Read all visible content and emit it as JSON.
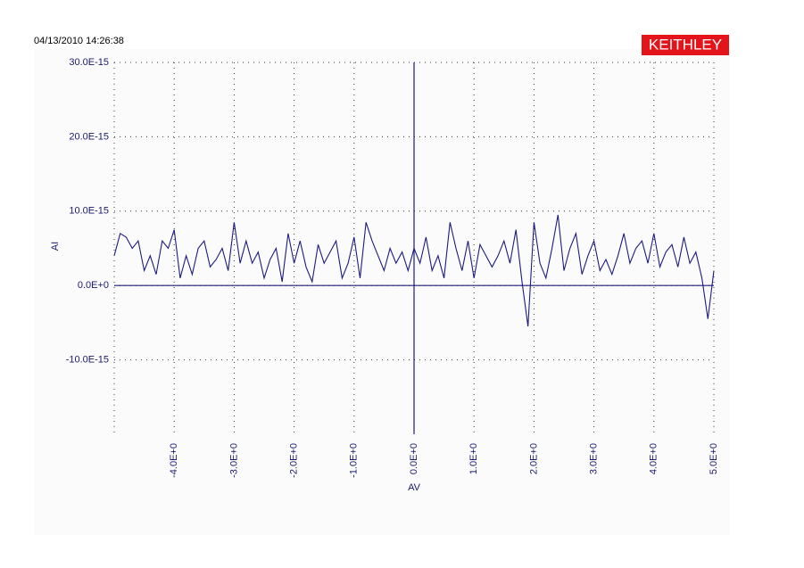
{
  "header": {
    "timestamp": "04/13/2010 14:26:38",
    "brand": "KEITHLEY"
  },
  "chart_data": {
    "type": "line",
    "xlabel": "AV",
    "ylabel": "AI",
    "color": "#1c1c80",
    "grid": true,
    "xlim": [
      -5,
      5
    ],
    "ylim": [
      -2e-14,
      3e-14
    ],
    "xticks": [
      {
        "value": -4,
        "label": "-4.0E+0"
      },
      {
        "value": -3,
        "label": "-3.0E+0"
      },
      {
        "value": -2,
        "label": "-2.0E+0"
      },
      {
        "value": -1,
        "label": "-1.0E+0"
      },
      {
        "value": 0,
        "label": "0.0E+0"
      },
      {
        "value": 1,
        "label": "1.0E+0"
      },
      {
        "value": 2,
        "label": "2.0E+0"
      },
      {
        "value": 3,
        "label": "3.0E+0"
      },
      {
        "value": 4,
        "label": "4.0E+0"
      },
      {
        "value": 5,
        "label": "5.0E+0"
      }
    ],
    "yticks": [
      {
        "value": 3e-14,
        "label": "30.0E-15"
      },
      {
        "value": 2e-14,
        "label": "20.0E-15"
      },
      {
        "value": 1e-14,
        "label": "10.0E-15"
      },
      {
        "value": 0,
        "label": "0.0E+0"
      },
      {
        "value": -1e-14,
        "label": "-10.0E-15"
      }
    ],
    "x": [
      -5.0,
      -4.9,
      -4.8,
      -4.7,
      -4.6,
      -4.5,
      -4.4,
      -4.3,
      -4.2,
      -4.1,
      -4.0,
      -3.9,
      -3.8,
      -3.7,
      -3.6,
      -3.5,
      -3.4,
      -3.3,
      -3.2,
      -3.1,
      -3.0,
      -2.9,
      -2.8,
      -2.7,
      -2.6,
      -2.5,
      -2.4,
      -2.3,
      -2.2,
      -2.1,
      -2.0,
      -1.9,
      -1.8,
      -1.7,
      -1.6,
      -1.5,
      -1.4,
      -1.3,
      -1.2,
      -1.1,
      -1.0,
      -0.9,
      -0.8,
      -0.7,
      -0.6,
      -0.5,
      -0.4,
      -0.3,
      -0.2,
      -0.1,
      0.0,
      0.1,
      0.2,
      0.3,
      0.4,
      0.5,
      0.6,
      0.7,
      0.8,
      0.9,
      1.0,
      1.1,
      1.2,
      1.3,
      1.4,
      1.5,
      1.6,
      1.7,
      1.8,
      1.9,
      2.0,
      2.1,
      2.2,
      2.3,
      2.4,
      2.5,
      2.6,
      2.7,
      2.8,
      2.9,
      3.0,
      3.1,
      3.2,
      3.3,
      3.4,
      3.5,
      3.6,
      3.7,
      3.8,
      3.9,
      4.0,
      4.1,
      4.2,
      4.3,
      4.4,
      4.5,
      4.6,
      4.7,
      4.8,
      4.9,
      5.0
    ],
    "values": [
      4e-15,
      7e-15,
      6.5e-15,
      5e-15,
      6e-15,
      2e-15,
      4e-15,
      1.5e-15,
      6e-15,
      5e-15,
      7.5e-15,
      1e-15,
      4e-15,
      1.5e-15,
      5e-15,
      6e-15,
      2.5e-15,
      3.5e-15,
      5e-15,
      2e-15,
      8.5e-15,
      3e-15,
      6e-15,
      3e-15,
      4.5e-15,
      1e-15,
      3.5e-15,
      5e-15,
      5e-16,
      7e-15,
      3e-15,
      6e-15,
      2.5e-15,
      5e-16,
      5.5e-15,
      3e-15,
      4.5e-15,
      6e-15,
      1e-15,
      3e-15,
      6.5e-15,
      1e-15,
      8.5e-15,
      6e-15,
      4e-15,
      2e-15,
      5e-15,
      3e-15,
      4.5e-15,
      2e-15,
      5e-15,
      3e-15,
      6.5e-15,
      2e-15,
      4e-15,
      1e-15,
      8.5e-15,
      5e-15,
      2e-15,
      6e-15,
      1e-15,
      5.5e-15,
      4e-15,
      2.5e-15,
      4e-15,
      6e-15,
      3e-15,
      7.5e-15,
      5e-16,
      -5.5e-15,
      8.5e-15,
      3e-15,
      1e-15,
      5e-15,
      9.5e-15,
      2e-15,
      5e-15,
      7e-15,
      1.5e-15,
      4e-15,
      6e-15,
      2e-15,
      3.5e-15,
      1.5e-15,
      4e-15,
      7e-15,
      3e-15,
      5e-15,
      6e-15,
      3e-15,
      7e-15,
      2.5e-15,
      4.5e-15,
      5.5e-15,
      2.5e-15,
      6.5e-15,
      3e-15,
      4.5e-15,
      1e-15,
      -4.5e-15,
      2e-15
    ]
  }
}
